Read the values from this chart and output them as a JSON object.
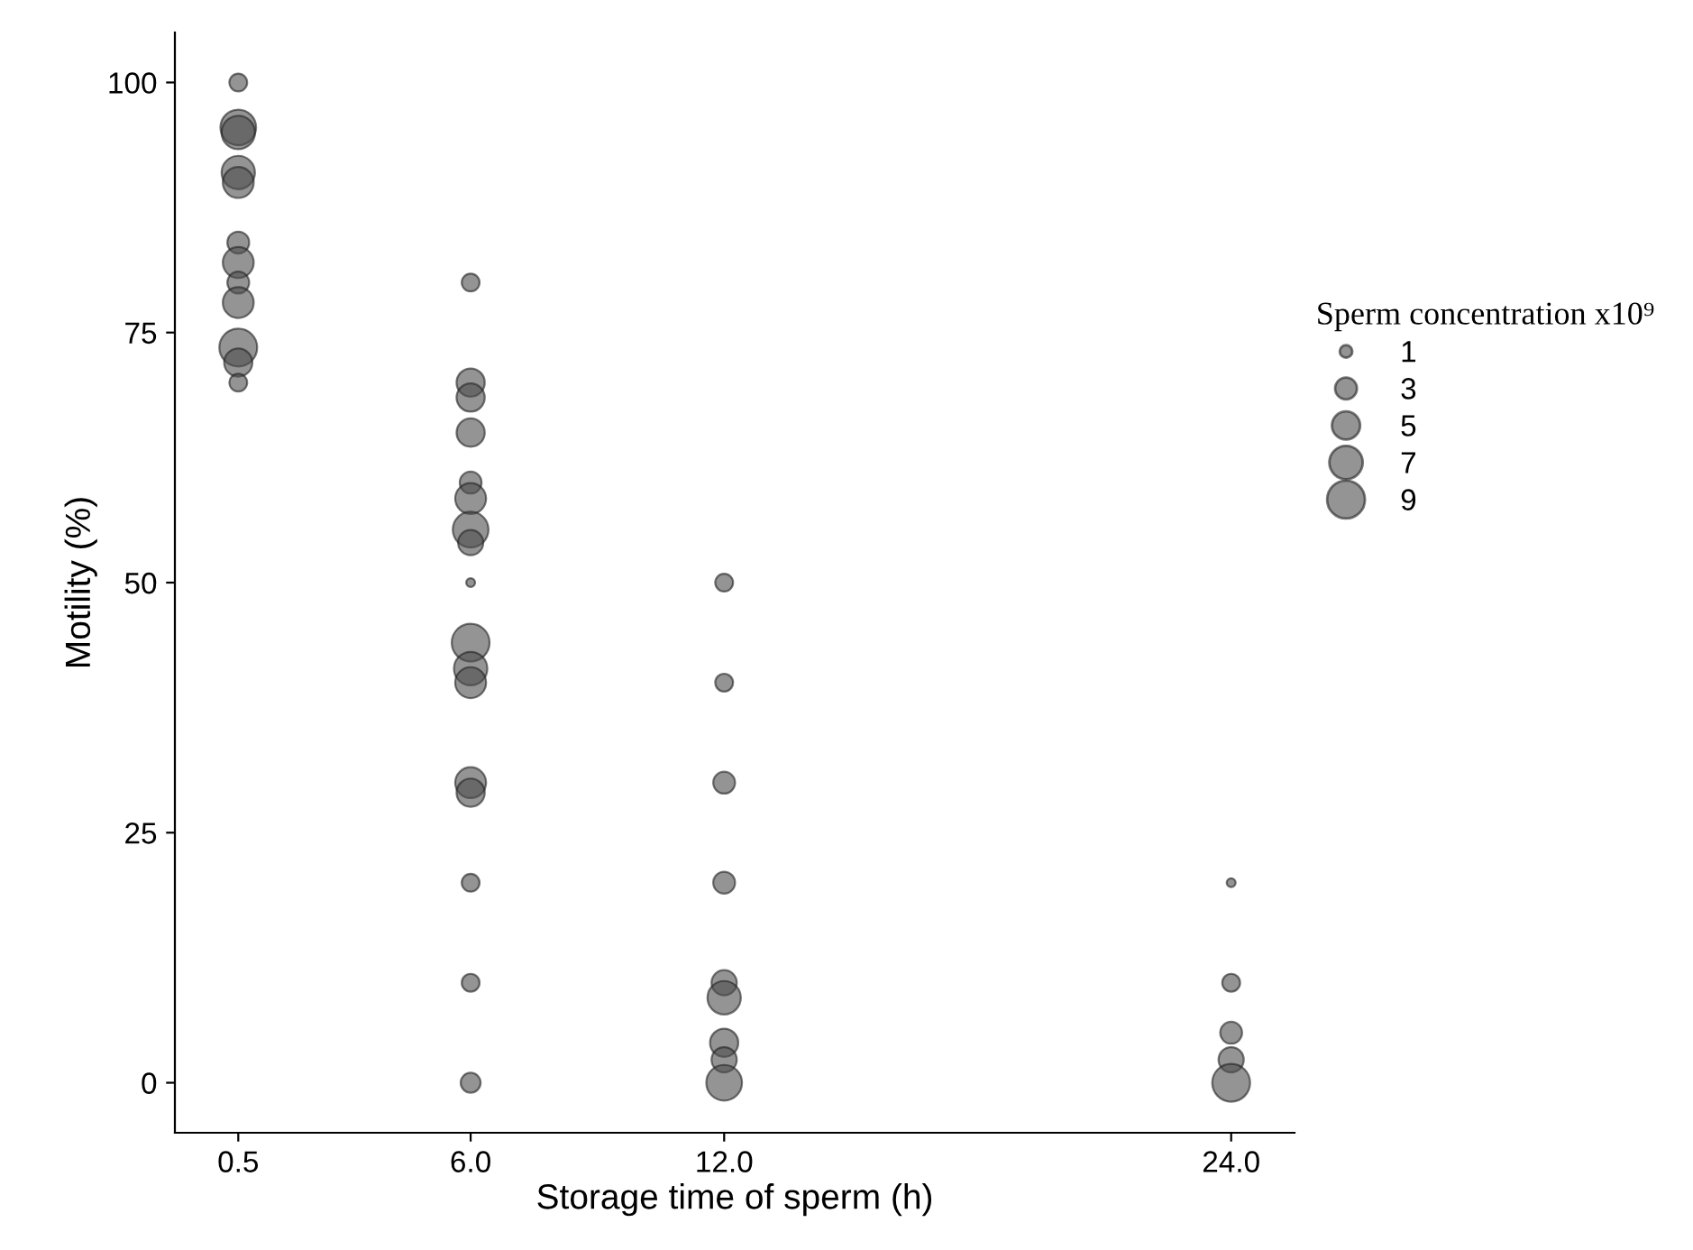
{
  "chart_data": {
    "type": "bubble",
    "xlabel": "Storage time of sperm (h)",
    "ylabel": "Motility (%)",
    "legend_title": "Sperm concentration x10⁹",
    "xlim": [
      -1.0,
      25.5
    ],
    "xticks": [
      {
        "value": 0.5,
        "label": "0.5"
      },
      {
        "value": 6,
        "label": "6.0"
      },
      {
        "value": 12,
        "label": "12.0"
      },
      {
        "value": 24,
        "label": "24.0"
      }
    ],
    "ylim": [
      -5,
      105
    ],
    "yticks": [
      0,
      25,
      50,
      75,
      100
    ],
    "size_legend": [
      1,
      3,
      5,
      7,
      9
    ],
    "grid": false,
    "series": [
      {
        "color": "#4d4d4d",
        "x": [
          0.5,
          0.5,
          0.5,
          0.5,
          0.5,
          0.5,
          0.5,
          0.5,
          0.5,
          0.5,
          0.5,
          0.5,
          6,
          6,
          6,
          6,
          6,
          6,
          6,
          6,
          6,
          6,
          6,
          6,
          6,
          6,
          6,
          6,
          6,
          12,
          12,
          12,
          12,
          12,
          12,
          12,
          12,
          12,
          24,
          24,
          24,
          24,
          24
        ],
        "values": [
          100,
          95.5,
          95,
          91,
          90,
          84,
          82,
          80,
          78,
          73.5,
          72,
          70,
          80,
          70,
          68.5,
          65,
          60,
          58.4,
          55.3,
          54,
          50,
          44,
          41.4,
          40,
          30,
          29,
          20,
          10,
          0,
          50,
          40,
          30,
          20,
          10,
          8.5,
          4,
          2.3,
          0,
          20,
          10,
          5,
          2.3,
          0
        ],
        "sizes": [
          2,
          8,
          7,
          7,
          6,
          3,
          6,
          3,
          6,
          9,
          5,
          2,
          2,
          5,
          5,
          5,
          3,
          6,
          8,
          4,
          0.5,
          9,
          7,
          6,
          6,
          5,
          2,
          2,
          2.5,
          2,
          2,
          3,
          3,
          4,
          7,
          5,
          4,
          8,
          0.5,
          2,
          3,
          4,
          9
        ]
      }
    ]
  }
}
